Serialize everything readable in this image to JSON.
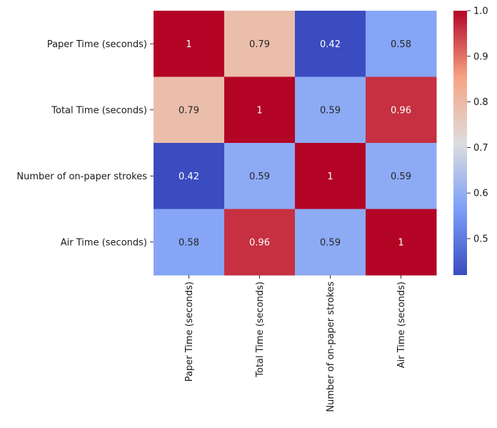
{
  "chart_data": {
    "type": "heatmap",
    "title": "",
    "xlabel": "",
    "ylabel": "",
    "rows": [
      "Paper Time (seconds)",
      "Total Time (seconds)",
      "Number of on-paper strokes",
      "Air Time (seconds)"
    ],
    "columns": [
      "Paper Time (seconds)",
      "Total Time (seconds)",
      "Number of on-paper strokes",
      "Air Time (seconds)"
    ],
    "values": [
      [
        1,
        0.79,
        0.42,
        0.58
      ],
      [
        0.79,
        1,
        0.59,
        0.96
      ],
      [
        0.42,
        0.59,
        1,
        0.59
      ],
      [
        0.58,
        0.96,
        0.59,
        1
      ]
    ],
    "annotations": [
      [
        "1",
        "0.79",
        "0.42",
        "0.58"
      ],
      [
        "0.79",
        "1",
        "0.59",
        "0.96"
      ],
      [
        "0.42",
        "0.59",
        "1",
        "0.59"
      ],
      [
        "0.58",
        "0.96",
        "0.59",
        "1"
      ]
    ],
    "colormap": "coolwarm",
    "vmin": 0.42,
    "vmax": 1.0,
    "colorbar": {
      "ticks": [
        0.5,
        0.6,
        0.7,
        0.8,
        0.9,
        1.0
      ],
      "tick_labels": [
        "0.5",
        "0.6",
        "0.7",
        "0.8",
        "0.9",
        "1.0"
      ]
    },
    "legend_placement": "right",
    "grid": false
  }
}
